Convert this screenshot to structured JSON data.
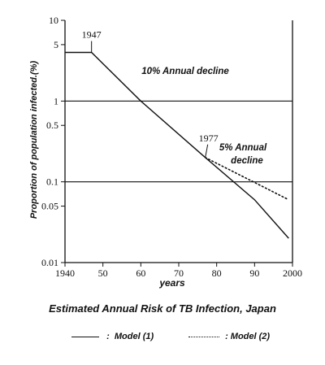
{
  "chart_data": {
    "type": "line",
    "title": "Estimated Annual Risk of TB Infection, Japan",
    "xlabel": "years",
    "ylabel": "Proportion of population infected.(%)",
    "yscale": "log",
    "xlim": [
      1940,
      2000
    ],
    "ylim": [
      0.01,
      10
    ],
    "x_ticks": [
      {
        "value": 1940,
        "label": "1940"
      },
      {
        "value": 1950,
        "label": "50"
      },
      {
        "value": 1960,
        "label": "60"
      },
      {
        "value": 1970,
        "label": "70"
      },
      {
        "value": 1980,
        "label": "80"
      },
      {
        "value": 1990,
        "label": "90"
      },
      {
        "value": 2000,
        "label": "2000"
      }
    ],
    "y_ticks": [
      {
        "value": 10,
        "label": "10"
      },
      {
        "value": 5,
        "label": "5"
      },
      {
        "value": 1,
        "label": "1"
      },
      {
        "value": 0.5,
        "label": "0.5"
      },
      {
        "value": 0.1,
        "label": "0.1"
      },
      {
        "value": 0.05,
        "label": "0.05"
      },
      {
        "value": 0.01,
        "label": "0.01"
      }
    ],
    "reference_lines": [
      1,
      0.1
    ],
    "series": [
      {
        "name": "Model (1)",
        "style": "solid",
        "points": [
          [
            1940,
            4.0
          ],
          [
            1947,
            4.0
          ],
          [
            1960,
            1.0
          ],
          [
            1977,
            0.2
          ],
          [
            1990,
            0.06
          ],
          [
            1999,
            0.02
          ]
        ]
      },
      {
        "name": "Model (2)",
        "style": "dotted",
        "points": [
          [
            1977,
            0.2
          ],
          [
            1999,
            0.06
          ]
        ]
      }
    ],
    "annotations": [
      {
        "text": "1947",
        "x": 1947
      },
      {
        "text": "10% Annual decline"
      },
      {
        "text": "1977",
        "x": 1977
      },
      {
        "text": "5% Annual"
      },
      {
        "text": "decline"
      }
    ],
    "legend": [
      {
        "symbol": ":",
        "label": "Model (1)",
        "style": "solid"
      },
      {
        "symbol": ": Model (2)",
        "label": "",
        "style": "dotted"
      }
    ]
  }
}
